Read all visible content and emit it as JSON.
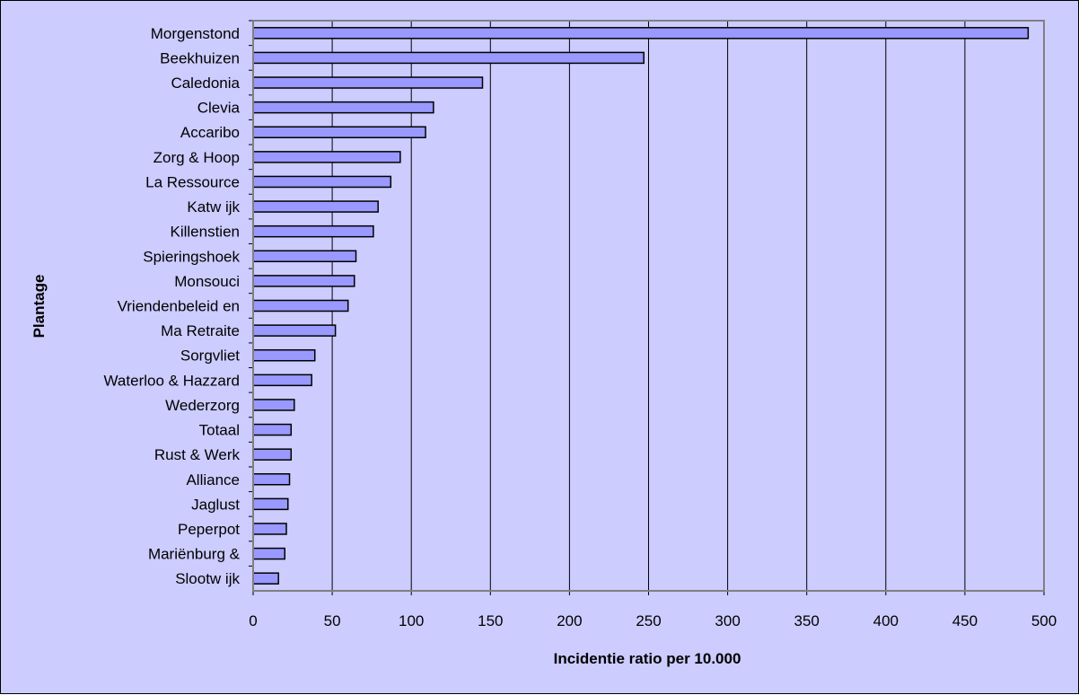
{
  "chart_data": {
    "type": "bar",
    "orientation": "horizontal",
    "title": "",
    "xlabel": "Incidentie ratio per 10.000",
    "ylabel": "Plantage",
    "xlim": [
      0,
      500
    ],
    "xticks": [
      0,
      50,
      100,
      150,
      200,
      250,
      300,
      350,
      400,
      450,
      500
    ],
    "grid": "vertical",
    "colors": {
      "background": "#ccccff",
      "bar_fill": "#9999ff",
      "bar_stroke": "#000000",
      "grid": "#000000",
      "plot_border": "#808080"
    },
    "categories": [
      "Morgenstond",
      "Beekhuizen",
      "Caledonia",
      "Clevia",
      "Accaribo",
      "Zorg & Hoop",
      "La Ressource",
      "Katw ijk",
      "Killenstien",
      "Spieringshoek",
      "Monsouci",
      "Vriendenbeleid en",
      "Ma Retraite",
      "Sorgvliet",
      "Waterloo & Hazzard",
      "Wederzorg",
      "Totaal",
      "Rust & Werk",
      "Alliance",
      "Jaglust",
      "Peperpot",
      "Mariënburg &",
      "Slootw ijk"
    ],
    "values": [
      490,
      247,
      145,
      114,
      109,
      93,
      87,
      79,
      76,
      65,
      64,
      60,
      52,
      39,
      37,
      26,
      24,
      24,
      23,
      22,
      21,
      20,
      16
    ]
  }
}
